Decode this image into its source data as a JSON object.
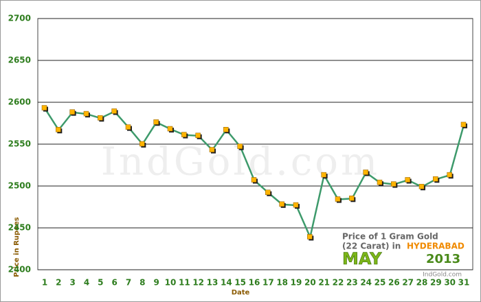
{
  "chart_data": {
    "type": "line",
    "xlabel": "Date",
    "ylabel": "Price in Rupees",
    "annotations": {
      "line1": "Price of 1 Gram Gold",
      "line2": "(22 Carat) in",
      "city": "HYDERABAD",
      "month": "MAY",
      "year": "2013",
      "source": "IndGold.com",
      "watermark": "IndGold.com"
    },
    "categories": [
      "1",
      "2",
      "3",
      "4",
      "5",
      "6",
      "7",
      "8",
      "9",
      "10",
      "11",
      "12",
      "13",
      "14",
      "15",
      "16",
      "17",
      "18",
      "19",
      "20",
      "21",
      "22",
      "23",
      "24",
      "25",
      "26",
      "27",
      "28",
      "29",
      "30",
      "31"
    ],
    "values": [
      2593,
      2567,
      2588,
      2586,
      2581,
      2589,
      2570,
      2550,
      2576,
      2568,
      2561,
      2560,
      2543,
      2567,
      2547,
      2507,
      2492,
      2478,
      2477,
      2439,
      2513,
      2484,
      2485,
      2516,
      2504,
      2502,
      2507,
      2499,
      2508,
      2513,
      2573
    ],
    "color": "#3d9a6b",
    "marker_color": "#ffb400",
    "ylim": [
      2400,
      2700
    ],
    "yticks": [
      2400,
      2450,
      2500,
      2550,
      2600,
      2650,
      2700
    ],
    "grid": true
  }
}
